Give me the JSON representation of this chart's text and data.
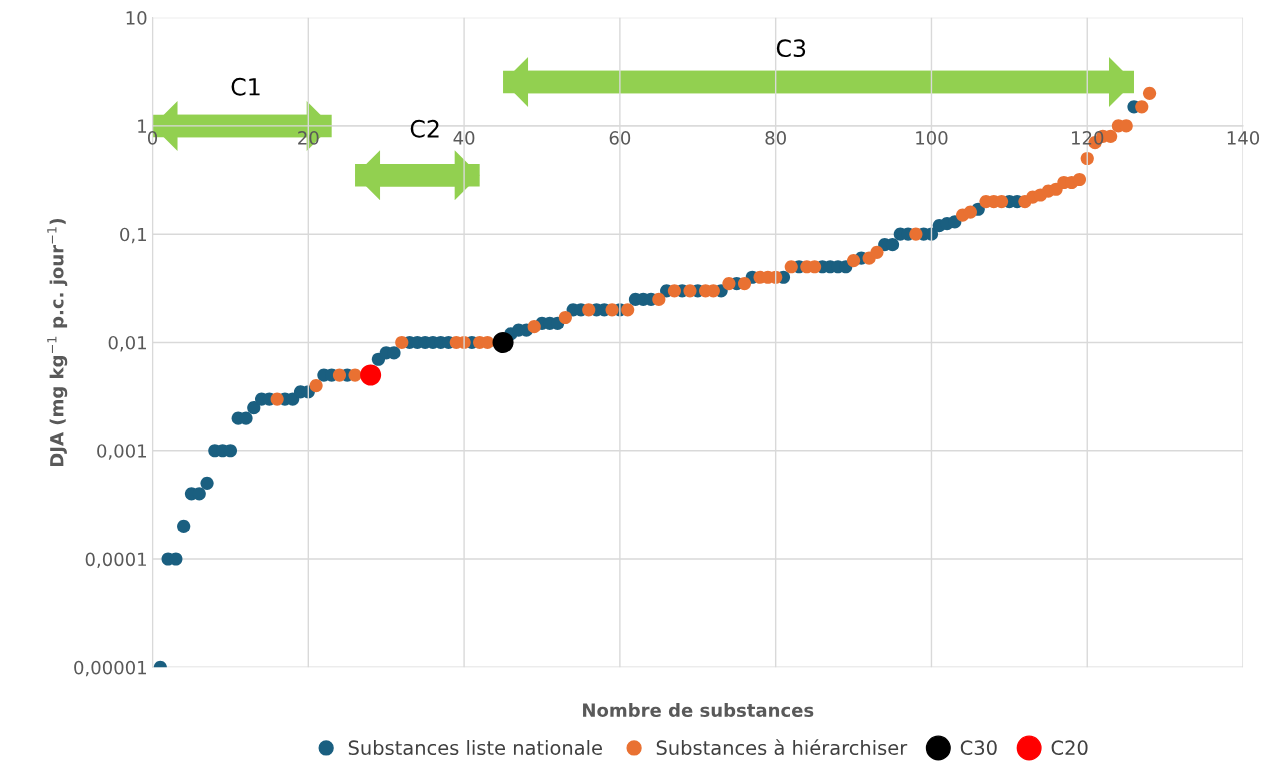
{
  "chart_data": {
    "type": "scatter",
    "xlabel": "Nombre de substances",
    "ylabel": "DJA (mg kg$^{−1}$ p.c. jour$^{−1}$)",
    "log": "y",
    "xlim": [
      0,
      140
    ],
    "xticks": [
      0,
      20,
      40,
      60,
      80,
      100,
      120,
      140
    ],
    "ylim": [
      1e-05,
      10
    ],
    "yticks": [
      {
        "value": 1e-05,
        "label": "0,00001"
      },
      {
        "value": 0.0001,
        "label": "0,0001"
      },
      {
        "value": 0.001,
        "label": "0,001"
      },
      {
        "value": 0.01,
        "label": "0,01"
      },
      {
        "value": 0.1,
        "label": "0,1"
      },
      {
        "value": 1,
        "label": "1"
      },
      {
        "value": 10,
        "label": "10"
      }
    ],
    "grid": true,
    "legend": "bottom",
    "marker": "circle",
    "annotations": [
      "C1",
      "C2",
      "C3"
    ],
    "series": [
      {
        "name": "Substances liste nationale",
        "color": "#1a5f80",
        "x": [
          1,
          2,
          3,
          4,
          5,
          6,
          7,
          8,
          9,
          10,
          11,
          12,
          13,
          14,
          15,
          17,
          18,
          19,
          20,
          22,
          23,
          25,
          29,
          30,
          31,
          33,
          34,
          35,
          36,
          37,
          38,
          41,
          46,
          47,
          48,
          50,
          51,
          52,
          54,
          55,
          57,
          58,
          60,
          62,
          63,
          64,
          66,
          68,
          70,
          73,
          75,
          77,
          81,
          83,
          86,
          87,
          88,
          89,
          91,
          94,
          95,
          96,
          97,
          99,
          100,
          101,
          102,
          103,
          106,
          110,
          111,
          126
        ],
        "values": [
          1e-05,
          0.0001,
          0.0001,
          0.0002,
          0.0004,
          0.0004,
          0.0005,
          0.001,
          0.001,
          0.001,
          0.002,
          0.002,
          0.0025,
          0.003,
          0.003,
          0.003,
          0.003,
          0.0035,
          0.0035,
          0.005,
          0.005,
          0.005,
          0.007,
          0.008,
          0.008,
          0.01,
          0.01,
          0.01,
          0.01,
          0.01,
          0.01,
          0.01,
          0.012,
          0.013,
          0.013,
          0.015,
          0.015,
          0.015,
          0.02,
          0.02,
          0.02,
          0.02,
          0.02,
          0.025,
          0.025,
          0.025,
          0.03,
          0.03,
          0.03,
          0.03,
          0.035,
          0.04,
          0.04,
          0.05,
          0.05,
          0.05,
          0.05,
          0.05,
          0.06,
          0.08,
          0.08,
          0.1,
          0.1,
          0.1,
          0.1,
          0.12,
          0.125,
          0.13,
          0.17,
          0.2,
          0.2,
          1.5
        ]
      },
      {
        "name": "Substances à hiérarchiser",
        "color": "#e97132",
        "x": [
          16,
          21,
          24,
          26,
          32,
          39,
          40,
          42,
          43,
          49,
          53,
          56,
          59,
          61,
          65,
          67,
          69,
          71,
          72,
          74,
          76,
          78,
          79,
          80,
          82,
          84,
          85,
          90,
          92,
          93,
          98,
          104,
          105,
          107,
          108,
          109,
          112,
          113,
          114,
          115,
          116,
          117,
          118,
          119,
          120,
          121,
          122,
          123,
          124,
          125,
          127,
          128
        ],
        "values": [
          0.003,
          0.004,
          0.005,
          0.005,
          0.01,
          0.01,
          0.01,
          0.01,
          0.01,
          0.014,
          0.017,
          0.02,
          0.02,
          0.02,
          0.025,
          0.03,
          0.03,
          0.03,
          0.03,
          0.035,
          0.035,
          0.04,
          0.04,
          0.04,
          0.05,
          0.05,
          0.05,
          0.057,
          0.06,
          0.068,
          0.1,
          0.15,
          0.16,
          0.2,
          0.2,
          0.2,
          0.2,
          0.22,
          0.23,
          0.25,
          0.26,
          0.3,
          0.3,
          0.32,
          0.5,
          0.7,
          0.8,
          0.8,
          1,
          1,
          1.5,
          2
        ]
      },
      {
        "name": "C30",
        "color": "#000000",
        "x": [
          45
        ],
        "values": [
          0.01
        ]
      },
      {
        "name": "C20",
        "color": "#ff0000",
        "x": [
          28
        ],
        "values": [
          0.005
        ]
      }
    ]
  }
}
